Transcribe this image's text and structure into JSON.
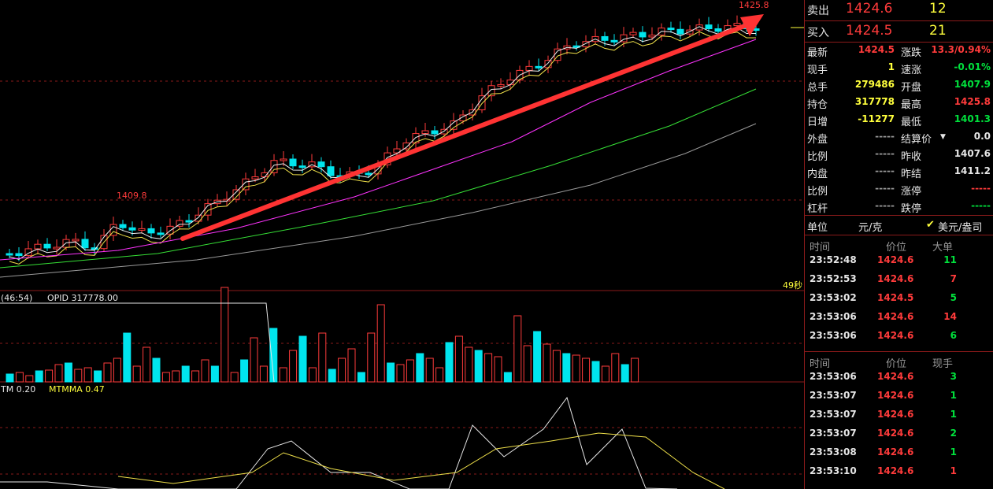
{
  "colors": {
    "up": "#ff3b3b",
    "down": "#00e5ee",
    "ma5": "#f0f0f0",
    "ma10": "#f0e14a",
    "ma20": "#ff33ff",
    "ma40": "#36e036",
    "ma60": "#9a9a9a",
    "grid": "#8a1a1a",
    "arrow": "#ff3333"
  },
  "main_chart": {
    "high_label": "1425.8",
    "low_mark_label": "1409.8",
    "timer_label": "49秒",
    "arrow_icon": "trend-up-arrow"
  },
  "volume_panel": {
    "time_label": "(46:54)",
    "opid_label": "OPID 317778.00"
  },
  "mtm_panel": {
    "mtm_label": "TM 0.20",
    "mtmma_label": "MTMMA 0.47"
  },
  "order_book": {
    "sell": {
      "label": "卖出",
      "price": "1424.6",
      "volume": "12"
    },
    "buy": {
      "label": "买入",
      "price": "1424.5",
      "volume": "21"
    }
  },
  "quote": [
    {
      "l1": "最新",
      "v1": "1424.5",
      "c1": "red",
      "l2": "涨跌",
      "v2": "13.3/0.94%",
      "c2": "red"
    },
    {
      "l1": "现手",
      "v1": "1",
      "c1": "yellow",
      "l2": "速涨",
      "v2": "-0.01%",
      "c2": "green"
    },
    {
      "l1": "总手",
      "v1": "279486",
      "c1": "yellow",
      "l2": "开盘",
      "v2": "1407.9",
      "c2": "green"
    },
    {
      "l1": "持仓",
      "v1": "317778",
      "c1": "yellow",
      "l2": "最高",
      "v2": "1425.8",
      "c2": "red"
    },
    {
      "l1": "日增",
      "v1": "-11277",
      "c1": "yellow",
      "l2": "最低",
      "v2": "1401.3",
      "c2": "green"
    },
    {
      "l1": "外盘",
      "v1": "-----",
      "c1": "grey",
      "l2": "结算价",
      "v2": "0.0",
      "c2": "white"
    },
    {
      "l1": "比例",
      "v1": "-----",
      "c1": "grey",
      "l2": "昨收",
      "v2": "1407.6",
      "c2": "white"
    },
    {
      "l1": "内盘",
      "v1": "-----",
      "c1": "grey",
      "l2": "昨结",
      "v2": "1411.2",
      "c2": "white"
    },
    {
      "l1": "比例",
      "v1": "-----",
      "c1": "grey",
      "l2": "涨停",
      "v2": "-----",
      "c2": "red"
    },
    {
      "l1": "杠杆",
      "v1": "-----",
      "c1": "grey",
      "l2": "跌停",
      "v2": "-----",
      "c2": "green"
    }
  ],
  "unit_bar": {
    "label": "单位",
    "unit1": "元/克",
    "unit2": "美元/盎司"
  },
  "big_orders": {
    "headers": [
      "时间",
      "价位",
      "大单"
    ],
    "rows": [
      {
        "time": "23:52:48",
        "price": "1424.6",
        "pc": "red",
        "vol": "11",
        "vc": "green"
      },
      {
        "time": "23:52:53",
        "price": "1424.6",
        "pc": "red",
        "vol": "7",
        "vc": "red"
      },
      {
        "time": "23:53:02",
        "price": "1424.5",
        "pc": "red",
        "vol": "5",
        "vc": "green"
      },
      {
        "time": "23:53:06",
        "price": "1424.6",
        "pc": "red",
        "vol": "14",
        "vc": "red"
      },
      {
        "time": "23:53:06",
        "price": "1424.6",
        "pc": "red",
        "vol": "6",
        "vc": "green"
      }
    ]
  },
  "ticks": {
    "headers": [
      "时间",
      "价位",
      "现手"
    ],
    "rows": [
      {
        "time": "23:53:06",
        "price": "1424.6",
        "pc": "red",
        "vol": "3",
        "vc": "green"
      },
      {
        "time": "23:53:07",
        "price": "1424.6",
        "pc": "red",
        "vol": "1",
        "vc": "green"
      },
      {
        "time": "23:53:07",
        "price": "1424.6",
        "pc": "red",
        "vol": "1",
        "vc": "green"
      },
      {
        "time": "23:53:07",
        "price": "1424.6",
        "pc": "red",
        "vol": "2",
        "vc": "green"
      },
      {
        "time": "23:53:08",
        "price": "1424.6",
        "pc": "red",
        "vol": "1",
        "vc": "green"
      },
      {
        "time": "23:53:10",
        "price": "1424.6",
        "pc": "red",
        "vol": "1",
        "vc": "red"
      }
    ]
  }
}
